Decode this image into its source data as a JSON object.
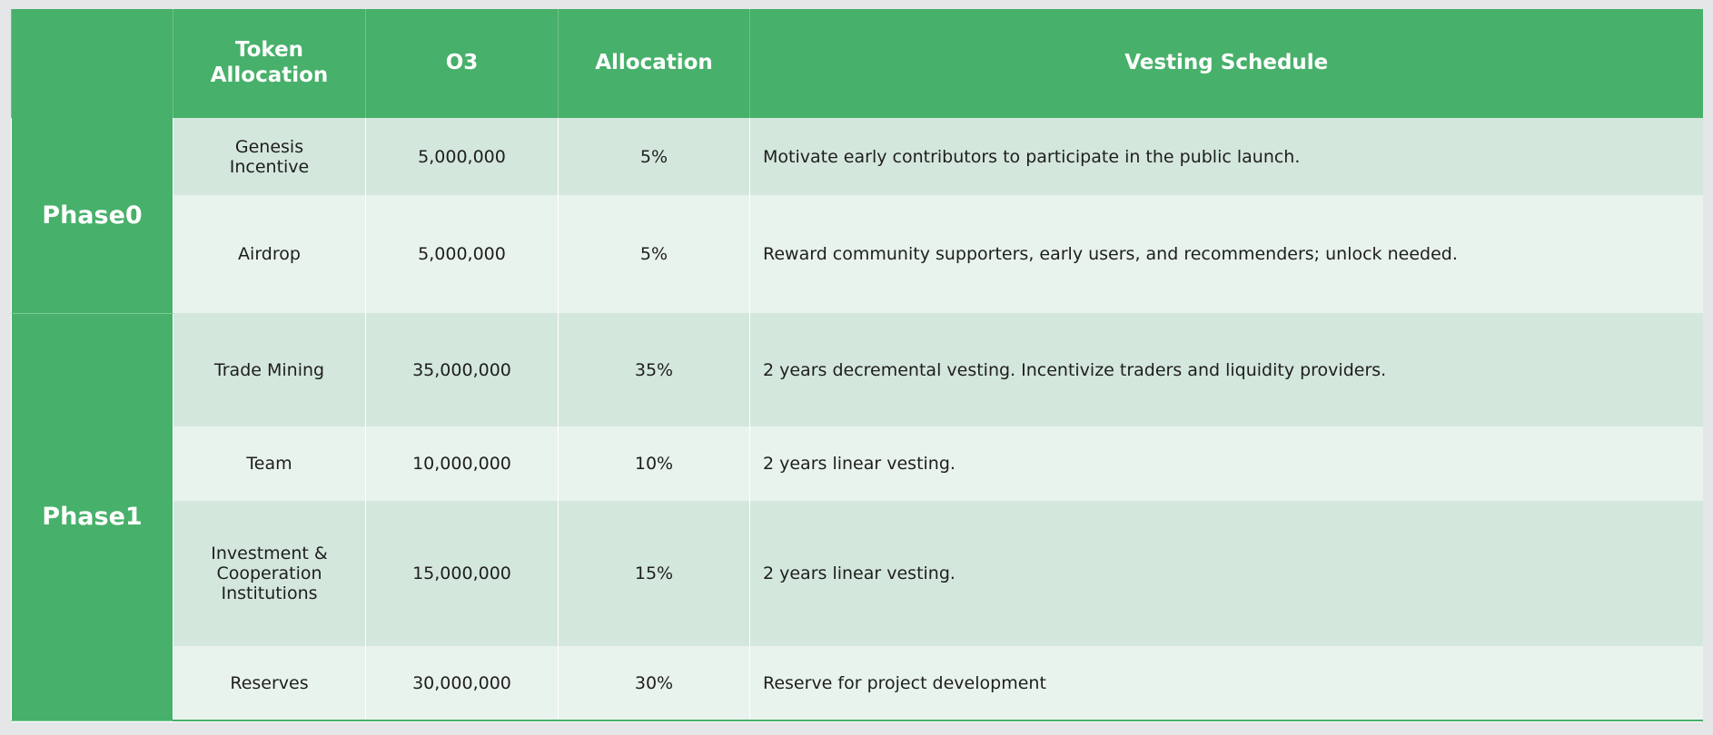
{
  "table": {
    "header": [
      "Token Allocation",
      "O3",
      "Allocation",
      "Vesting Schedule"
    ],
    "groups": [
      {
        "phase": "Phase0",
        "rows": [
          [
            "Genesis Incentive",
            "5,000,000",
            "5%",
            "Motivate early contributors to participate in the public launch."
          ],
          [
            "Airdrop",
            "5,000,000",
            "5%",
            "Reward community supporters, early users, and recommenders; unlock needed."
          ]
        ]
      },
      {
        "phase": "Phase1",
        "rows": [
          [
            "Trade Mining",
            "35,000,000",
            "35%",
            "2 years decremental vesting. Incentivize traders and liquidity providers."
          ],
          [
            "Team",
            "10,000,000",
            "10%",
            "2 years linear vesting."
          ],
          [
            "Investment & Cooperation Institutions",
            "15,000,000",
            "15%",
            "2 years linear vesting."
          ],
          [
            "Reserves",
            "30,000,000",
            "30%",
            "Reserve for project development"
          ]
        ]
      }
    ]
  }
}
